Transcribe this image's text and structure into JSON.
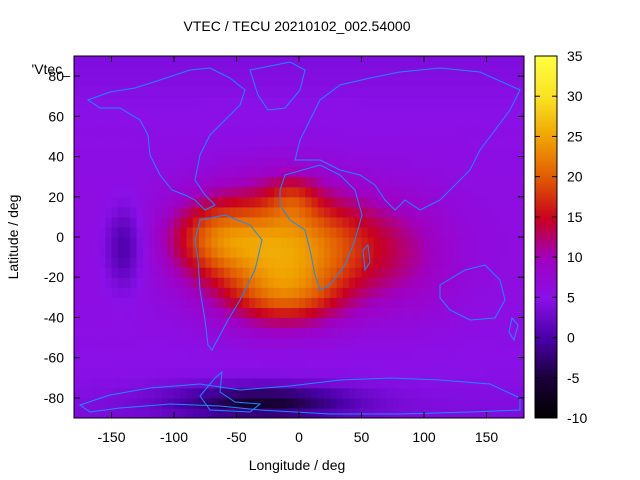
{
  "chart_data": {
    "type": "heatmap",
    "title": "VTEC / TECU 20210102_002.54000",
    "xlabel": "Longitude / deg",
    "ylabel": "Latitude / deg",
    "series_label": "'Vtec_",
    "xlim": [
      -180,
      180
    ],
    "ylim": [
      -90,
      90
    ],
    "x_ticks": [
      "-150",
      "-100",
      "-50",
      "0",
      "50",
      "100",
      "150"
    ],
    "y_ticks": [
      "-80",
      "-60",
      "-40",
      "-20",
      "0",
      "20",
      "40",
      "60",
      "80"
    ],
    "colorbar": {
      "range": [
        -10,
        35
      ],
      "ticks": [
        "-10",
        "-5",
        "0",
        "5",
        "10",
        "15",
        "20",
        "25",
        "30",
        "35"
      ]
    },
    "features": [
      {
        "lon": -20,
        "lat": -5,
        "sx": 60,
        "sy": 28,
        "amp": 17
      },
      {
        "lon": -70,
        "lat": 0,
        "sx": 35,
        "sy": 18,
        "amp": 8
      },
      {
        "lon": -10,
        "lat": -30,
        "sx": 45,
        "sy": 15,
        "amp": 8
      },
      {
        "lon": -5,
        "lat": 20,
        "sx": 20,
        "sy": 12,
        "amp": 5
      },
      {
        "lon": 40,
        "lat": -5,
        "sx": 50,
        "sy": 25,
        "amp": 6
      },
      {
        "lon": 90,
        "lat": -10,
        "sx": 40,
        "sy": 30,
        "amp": 3
      },
      {
        "lon": -140,
        "lat": -5,
        "sx": 15,
        "sy": 20,
        "amp": -6
      },
      {
        "lon": -30,
        "lat": -82,
        "sx": 70,
        "sy": 8,
        "amp": -10
      }
    ]
  },
  "colors": {
    "coastline": "#1e88ff",
    "colormap": [
      "#000000",
      "#1a003a",
      "#4a00a8",
      "#8a10e8",
      "#a000c0",
      "#c80020",
      "#e05800",
      "#f0a000",
      "#f8e020",
      "#ffff40"
    ]
  }
}
